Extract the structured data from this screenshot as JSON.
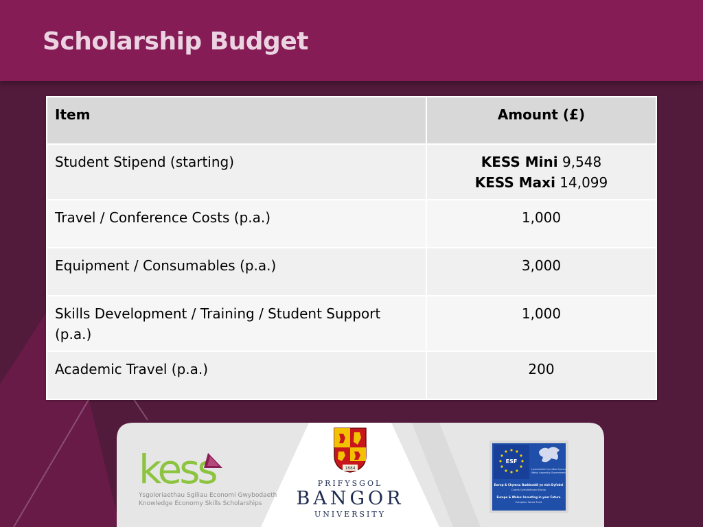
{
  "slide": {
    "title": "Scholarship Budget"
  },
  "table": {
    "headers": {
      "item": "Item",
      "amount": "Amount (£)"
    },
    "stipend": {
      "item": "Student Stipend (starting)",
      "mini_label": "KESS Mini",
      "mini_value": " 9,548",
      "maxi_label": "KESS Maxi",
      "maxi_value": " 14,099"
    },
    "rows": [
      {
        "item": "Travel / Conference Costs (p.a.)",
        "amount": "1,000"
      },
      {
        "item": "Equipment / Consumables (p.a.)",
        "amount": "3,000"
      },
      {
        "item": "Skills Development / Training / Student Support (p.a.)",
        "amount": "1,000"
      },
      {
        "item": "Academic Travel (p.a.)",
        "amount": "200"
      }
    ]
  },
  "logos": {
    "kess": {
      "wordmark": "kess",
      "subtitle_welsh": "Ysgoloriaethau Sgiliau Economi Gwybodaeth",
      "subtitle_english": "Knowledge Economy Skills Scholarships"
    },
    "bangor": {
      "line1": "PRIFYSGOL",
      "line2": "BANGOR",
      "line3": "UNIVERSITY",
      "crest_year": "1884"
    },
    "esf": {
      "badge": "ESF",
      "welsh_gov": "Llywodraeth Cynulliad Cymru",
      "welsh_gov_en": "Welsh Assembly Government",
      "tagline_cy": "Ewrop & Chymru: Buddsoddi yn eich Dyfodol",
      "fund_cy": "Cronfa Gymdeithasol Ewrop",
      "tagline_en": "Europe & Wales: Investing in your Future",
      "fund_en": "European Social Fund"
    }
  },
  "colors": {
    "background": "#521a3b",
    "header": "#851c55",
    "title_text": "#ecd3e2",
    "kess_green": "#8cc43f",
    "kess_triangle": "#8b1f55",
    "bangor_navy": "#1d2a4e",
    "esf_blue": "#1f4fa8"
  }
}
